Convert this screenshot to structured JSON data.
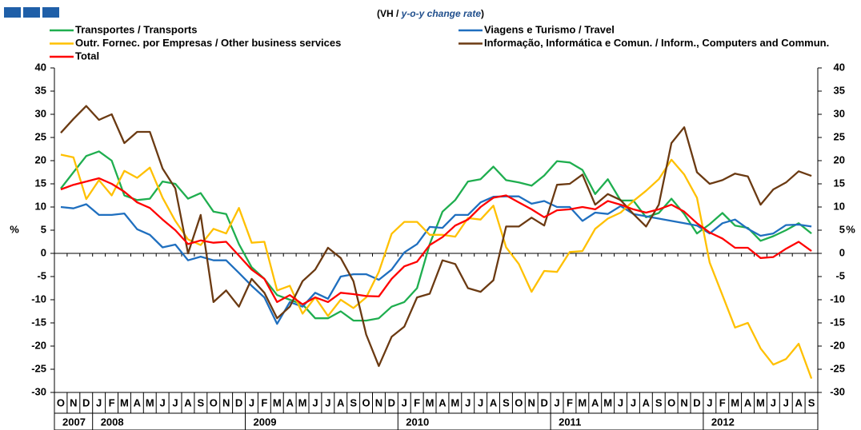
{
  "chart_data": {
    "type": "line",
    "subtitle": [
      "(VH / ",
      "y-o-y change rate",
      ")"
    ],
    "ylabel": "%",
    "categories": [
      "O",
      "N",
      "D",
      "J",
      "F",
      "M",
      "A",
      "M",
      "J",
      "J",
      "A",
      "S",
      "O",
      "N",
      "D",
      "J",
      "F",
      "M",
      "A",
      "M",
      "J",
      "J",
      "A",
      "S",
      "O",
      "N",
      "D",
      "J",
      "F",
      "M",
      "A",
      "M",
      "J",
      "J",
      "A",
      "S",
      "O",
      "N",
      "D",
      "J",
      "F",
      "M",
      "A",
      "M",
      "J",
      "J",
      "A",
      "S",
      "O",
      "N",
      "D",
      "J",
      "F",
      "M",
      "A",
      "M",
      "J",
      "J",
      "A",
      "S"
    ],
    "years": [
      "2007",
      "2008",
      "2009",
      "2010",
      "2011",
      "2012"
    ],
    "ylim": [
      -30,
      40
    ],
    "yticks": [
      -30,
      -25,
      -20,
      -15,
      -10,
      -5,
      0,
      5,
      10,
      15,
      20,
      25,
      30,
      35,
      40
    ],
    "series": [
      {
        "name": "Transportes / Transports",
        "color": "#1fae4f",
        "values": [
          14,
          17.5,
          21,
          22,
          20,
          12.5,
          11.5,
          11.8,
          15.5,
          15,
          11.8,
          13,
          9,
          8.5,
          2,
          -3,
          -5.5,
          -9,
          -10,
          -11,
          -14,
          -14,
          -12.5,
          -14.5,
          -14.5,
          -14,
          -11.5,
          -10.5,
          -7.5,
          2,
          9,
          11.5,
          15.5,
          16,
          18.7,
          15.8,
          15.3,
          14.6,
          16.8,
          19.9,
          19.6,
          18,
          12.8,
          16,
          11.4,
          11.4,
          7.8,
          8.7,
          11.8,
          8.5,
          4.3,
          6.3,
          8.7,
          6,
          5.5,
          2.7,
          3.7,
          5,
          6.5,
          4.3
        ]
      },
      {
        "name": "Viagens e Turismo / Travel",
        "color": "#1f6fbf",
        "values": [
          10,
          9.7,
          10.6,
          8.3,
          8.3,
          8.6,
          5.2,
          4,
          1.3,
          1.9,
          -1.5,
          -0.7,
          -1.5,
          -1.5,
          -4.2,
          -7,
          -9.5,
          -15.2,
          -10.5,
          -11.5,
          -8.5,
          -9.8,
          -5,
          -4.5,
          -4.5,
          -5.7,
          -3.5,
          0.2,
          2,
          5.7,
          5.5,
          8.3,
          8.3,
          11,
          12.2,
          12.3,
          12.3,
          10.7,
          11.3,
          10,
          10,
          7,
          8.8,
          8.5,
          10.2,
          8.5,
          8,
          7.5,
          7,
          6.5,
          6,
          4.3,
          6.5,
          7.3,
          5.3,
          3.8,
          4.3,
          6.1,
          6.2,
          5.8
        ]
      },
      {
        "name": "Outr. Fornec. por Empresas / Other business services",
        "color": "#ffc000",
        "values": [
          21.3,
          20.7,
          11.7,
          15.8,
          12.5,
          17.8,
          16.3,
          18.5,
          12,
          7,
          3,
          1.8,
          5.3,
          4.3,
          9.8,
          2.3,
          2.5,
          -8,
          -7,
          -13,
          -9.5,
          -13.5,
          -10,
          -11.8,
          -9.5,
          -4,
          4.2,
          6.8,
          6.8,
          4,
          4,
          3.6,
          7.6,
          7.3,
          10.3,
          1.3,
          -2.3,
          -8.3,
          -3.8,
          -4,
          0.3,
          0.5,
          5.3,
          7.5,
          8.8,
          11.3,
          13.5,
          16,
          20.2,
          17,
          12,
          -2,
          -9,
          -16,
          -15,
          -20.5,
          -24,
          -22.8,
          -19.5,
          -27
        ]
      },
      {
        "name": "Informação, Informática e Comun. / Inform., Computers and Commun.",
        "color": "#6b3a12",
        "values": [
          26,
          29,
          31.8,
          28.8,
          30,
          23.8,
          26.2,
          26.2,
          18.3,
          14,
          0,
          8.3,
          -10.5,
          -8,
          -11.5,
          -5.5,
          -8.5,
          -14,
          -11.5,
          -6,
          -3.5,
          1.2,
          -1,
          -6,
          -17.5,
          -24.3,
          -18,
          -15.8,
          -9.5,
          -8.7,
          -1.5,
          -2.3,
          -7.5,
          -8.3,
          -5.8,
          5.8,
          5.8,
          7.7,
          6,
          14.8,
          15,
          17,
          10.5,
          12.8,
          11.5,
          8.5,
          5.8,
          10.5,
          23.8,
          27.2,
          17.5,
          15,
          15.8,
          17.2,
          16.6,
          10.5,
          13.8,
          15.3,
          17.7,
          16.7
        ]
      },
      {
        "name": "Total",
        "color": "#ff0000",
        "values": [
          13.8,
          14.8,
          15.5,
          16.2,
          15,
          13.3,
          11,
          9.8,
          7.3,
          5,
          2,
          2.8,
          2.3,
          2.5,
          -0.5,
          -3.5,
          -5.5,
          -10.5,
          -9,
          -11,
          -9.5,
          -10.5,
          -8.5,
          -8.8,
          -9.2,
          -9.3,
          -5.5,
          -2.8,
          -1.8,
          1.8,
          3.5,
          6,
          7.3,
          10,
          12,
          12.5,
          11,
          9.5,
          7.8,
          9.3,
          9.5,
          10,
          9.5,
          11.3,
          10.5,
          9.5,
          8.8,
          9.5,
          10.5,
          9,
          6.5,
          4.5,
          3.2,
          1.2,
          1.2,
          -1,
          -0.8,
          1,
          2.5,
          0.5
        ]
      }
    ]
  }
}
